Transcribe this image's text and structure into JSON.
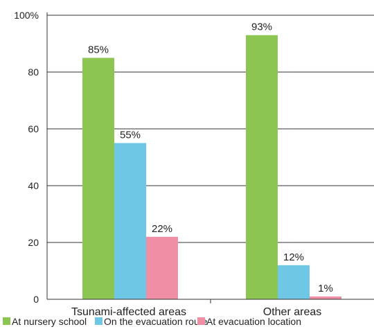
{
  "chart_data": {
    "type": "bar",
    "categories": [
      "Tsunami-affected areas",
      "Other areas"
    ],
    "series": [
      {
        "name": "At nursery school",
        "values": [
          85,
          93
        ],
        "color": "#8dc553"
      },
      {
        "name": "On the evacuation route",
        "values": [
          55,
          12
        ],
        "color": "#6ec8e5"
      },
      {
        "name": "At evacuation location",
        "values": [
          22,
          1
        ],
        "color": "#f08ea5"
      }
    ],
    "data_labels": [
      [
        "85%",
        "93%"
      ],
      [
        "55%",
        "12%"
      ],
      [
        "22%",
        "1%"
      ]
    ],
    "y_ticks": [
      "0",
      "20",
      "40",
      "60",
      "80",
      "100%"
    ],
    "ylim": [
      0,
      100
    ],
    "grid": true,
    "legend": "bottom",
    "title": "",
    "xlabel": "",
    "ylabel": ""
  }
}
